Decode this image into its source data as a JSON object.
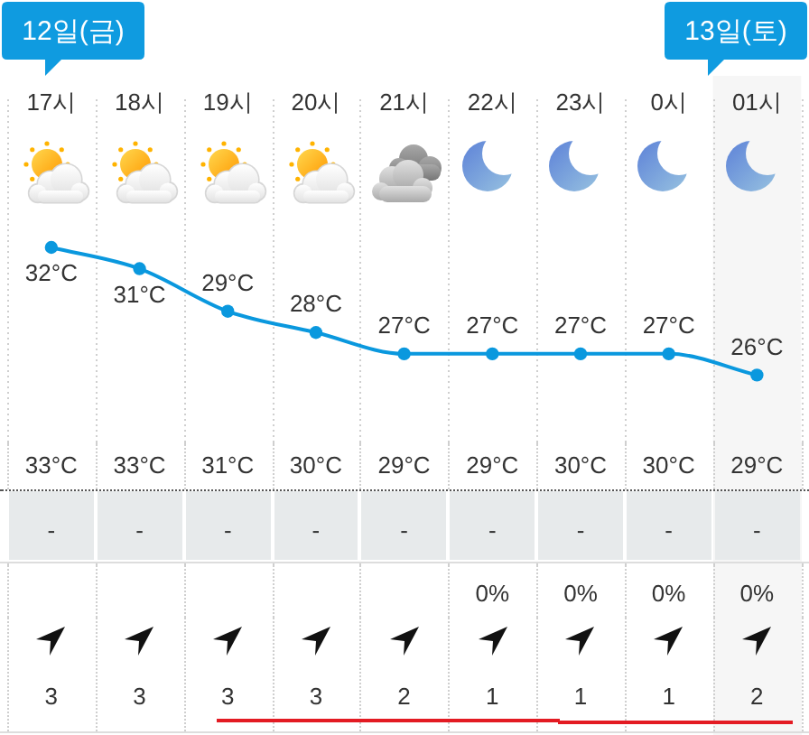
{
  "chart_data": [
    {
      "type": "line",
      "categories": [
        "17시",
        "18시",
        "19시",
        "20시",
        "21시",
        "22시",
        "23시",
        "0시",
        "01시"
      ],
      "series": [
        {
          "color": "#0a98de",
          "values": [
            32,
            31,
            29,
            28,
            27,
            27,
            27,
            27,
            26
          ],
          "value_labels": [
            "32°C",
            "31°C",
            "29°C",
            "28°C",
            "27°C",
            "27°C",
            "27°C",
            "27°C",
            "26°C"
          ]
        }
      ],
      "annotations": [
        "12일(금)",
        "13일(토)"
      ],
      "bands": [
        {
          "axis": "x",
          "from": "01시",
          "to": "01시",
          "color": "#f6f6f6"
        }
      ],
      "grid": "x",
      "marker": "circle",
      "tick_labels": "x"
    },
    {
      "type": "other",
      "annotations": [
        "33°C",
        "33°C",
        "31°C",
        "30°C",
        "29°C",
        "29°C",
        "30°C",
        "30°C",
        "29°C"
      ]
    },
    {
      "type": "other",
      "annotations": [
        "-",
        "-",
        "-",
        "-",
        "-",
        "-",
        "-",
        "-",
        "-"
      ]
    },
    {
      "type": "other",
      "annotations": [
        "0%",
        "0%",
        "0%",
        "0%"
      ]
    },
    {
      "type": "other",
      "annotations": [
        "3",
        "3",
        "3",
        "3",
        "2",
        "1",
        "1",
        "1",
        "2"
      ]
    }
  ]
}
